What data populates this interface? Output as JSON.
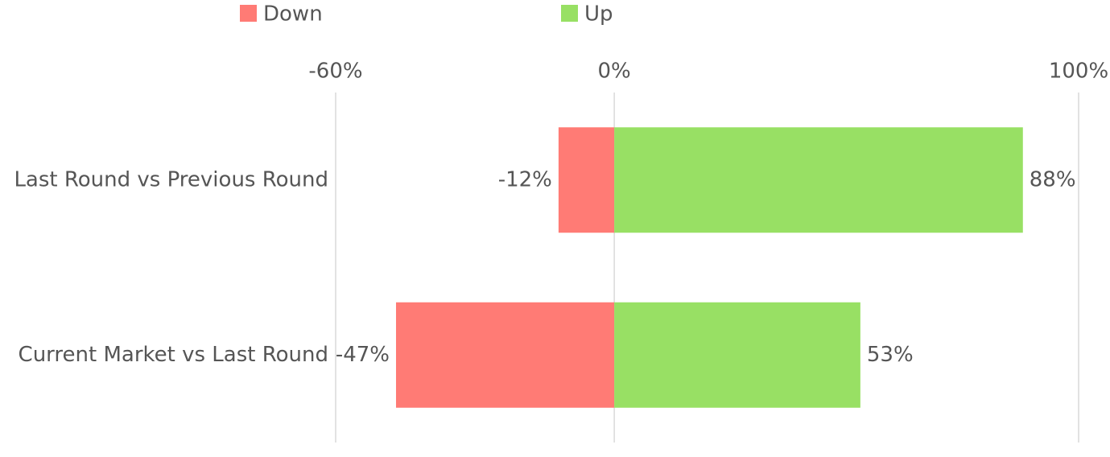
{
  "chart_data": {
    "type": "bar",
    "orientation": "horizontal",
    "categories": [
      "Last Round vs Previous Round",
      "Current Market vs Last Round"
    ],
    "series": [
      {
        "name": "Down",
        "color": "#ff7b75",
        "values": [
          -12,
          -47
        ],
        "value_labels": [
          "-12%",
          "-47%"
        ]
      },
      {
        "name": "Up",
        "color": "#98e064",
        "values": [
          88,
          53
        ],
        "value_labels": [
          "88%",
          "53%"
        ]
      }
    ],
    "xlim": [
      -60,
      100
    ],
    "xticks": [
      {
        "value": -60,
        "label": "-60%"
      },
      {
        "value": 0,
        "label": "0%"
      },
      {
        "value": 100,
        "label": "100%"
      }
    ],
    "grid": true,
    "legend": "top"
  }
}
